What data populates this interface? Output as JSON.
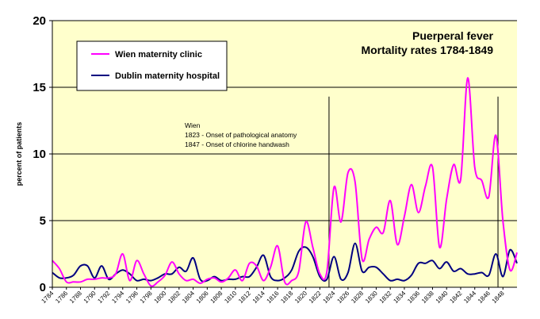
{
  "chart_data": {
    "type": "line",
    "title": [
      "Puerperal fever",
      "Mortality rates 1784-1849"
    ],
    "ylabel": "percent of patients",
    "ylim": [
      0,
      20
    ],
    "yticks": [
      0,
      5,
      10,
      15,
      20
    ],
    "xlim": [
      1784,
      1850
    ],
    "xticks": [
      1784,
      1786,
      1788,
      1790,
      1792,
      1794,
      1796,
      1798,
      1800,
      1802,
      1804,
      1806,
      1808,
      1810,
      1812,
      1814,
      1816,
      1818,
      1820,
      1822,
      1824,
      1826,
      1828,
      1830,
      1832,
      1834,
      1836,
      1838,
      1840,
      1842,
      1844,
      1846,
      1848
    ],
    "grid": "horizontal",
    "legend_position": "top-left",
    "annotation": [
      "Wien",
      "1823 - Onset of pathological anatomy",
      "1847 - Onset of chlorine handwash"
    ],
    "vlines": [
      1823.3,
      1847.3
    ],
    "colors": {
      "background": "#FFFFCC",
      "wien": "#FF00FF",
      "dublin": "#000080"
    },
    "series": [
      {
        "name": "Wien maternity clinic",
        "x": [
          1784,
          1785,
          1786,
          1787,
          1788,
          1789,
          1790,
          1791,
          1792,
          1793,
          1794,
          1795,
          1796,
          1797,
          1798,
          1799,
          1800,
          1801,
          1802,
          1803,
          1804,
          1805,
          1806,
          1807,
          1808,
          1809,
          1810,
          1811,
          1812,
          1813,
          1814,
          1815,
          1816,
          1817,
          1818,
          1819,
          1820,
          1821,
          1822,
          1823,
          1824,
          1825,
          1826,
          1827,
          1828,
          1829,
          1830,
          1831,
          1832,
          1833,
          1834,
          1835,
          1836,
          1837,
          1838,
          1839,
          1840,
          1841,
          1842,
          1843,
          1844,
          1845,
          1846,
          1847,
          1848,
          1849,
          1850
        ],
        "values": [
          2.0,
          1.4,
          0.4,
          0.4,
          0.4,
          0.6,
          0.6,
          0.7,
          0.7,
          1.0,
          2.5,
          0.5,
          2.0,
          1.0,
          0.1,
          0.4,
          0.9,
          1.9,
          1.0,
          0.5,
          0.6,
          0.3,
          0.6,
          0.7,
          0.4,
          0.7,
          1.3,
          0.5,
          1.8,
          1.6,
          0.5,
          1.5,
          3.1,
          0.4,
          0.5,
          1.2,
          4.9,
          3.0,
          1.0,
          1.2,
          7.5,
          4.9,
          8.6,
          7.9,
          2.1,
          3.6,
          4.5,
          4.1,
          6.5,
          3.2,
          5.3,
          7.7,
          5.6,
          7.6,
          9.0,
          3.0,
          6.6,
          9.2,
          8.1,
          15.7,
          9.0,
          8.0,
          6.8,
          11.4,
          5.0,
          1.3,
          2.6
        ]
      },
      {
        "name": "Dublin maternity hospital",
        "x": [
          1784,
          1785,
          1786,
          1787,
          1788,
          1789,
          1790,
          1791,
          1792,
          1793,
          1794,
          1795,
          1796,
          1797,
          1798,
          1799,
          1800,
          1801,
          1802,
          1803,
          1804,
          1805,
          1806,
          1807,
          1808,
          1809,
          1810,
          1811,
          1812,
          1813,
          1814,
          1815,
          1816,
          1817,
          1818,
          1819,
          1820,
          1821,
          1822,
          1823,
          1824,
          1825,
          1826,
          1827,
          1828,
          1829,
          1830,
          1831,
          1832,
          1833,
          1834,
          1835,
          1836,
          1837,
          1838,
          1839,
          1840,
          1841,
          1842,
          1843,
          1844,
          1845,
          1846,
          1847,
          1848,
          1849,
          1850
        ],
        "values": [
          1.1,
          0.7,
          0.7,
          0.9,
          1.6,
          1.6,
          0.7,
          1.6,
          0.6,
          1.0,
          1.3,
          1.0,
          0.5,
          0.6,
          0.5,
          0.7,
          1.0,
          1.0,
          1.5,
          1.2,
          2.2,
          0.6,
          0.5,
          0.8,
          0.5,
          0.6,
          0.6,
          0.8,
          0.8,
          1.5,
          2.4,
          0.8,
          0.5,
          0.7,
          1.3,
          2.7,
          3.0,
          2.3,
          0.8,
          0.6,
          2.3,
          0.6,
          1.1,
          3.3,
          1.2,
          1.5,
          1.5,
          1.0,
          0.5,
          0.6,
          0.5,
          0.9,
          1.8,
          1.8,
          2.0,
          1.4,
          1.9,
          1.2,
          1.4,
          1.0,
          1.0,
          1.1,
          0.9,
          2.5,
          0.8,
          2.8,
          1.8
        ]
      }
    ]
  }
}
